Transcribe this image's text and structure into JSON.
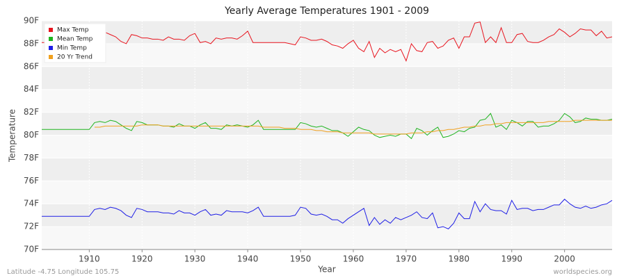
{
  "chart_data": {
    "type": "line",
    "title": "Yearly Average Temperatures 1901 - 2009",
    "xlabel": "Year",
    "ylabel": "Temperature",
    "caption": "Latitude -4.75 Longitude 105.75",
    "source": "worldspecies.org",
    "x": [
      1901,
      1902,
      1903,
      1904,
      1905,
      1906,
      1907,
      1908,
      1909,
      1910,
      1911,
      1912,
      1913,
      1914,
      1915,
      1916,
      1917,
      1918,
      1919,
      1920,
      1921,
      1922,
      1923,
      1924,
      1925,
      1926,
      1927,
      1928,
      1929,
      1930,
      1931,
      1932,
      1933,
      1934,
      1935,
      1936,
      1937,
      1938,
      1939,
      1940,
      1941,
      1942,
      1943,
      1944,
      1945,
      1946,
      1947,
      1948,
      1949,
      1950,
      1951,
      1952,
      1953,
      1954,
      1955,
      1956,
      1957,
      1958,
      1959,
      1960,
      1961,
      1962,
      1963,
      1964,
      1965,
      1966,
      1967,
      1968,
      1969,
      1970,
      1971,
      1972,
      1973,
      1974,
      1975,
      1976,
      1977,
      1978,
      1979,
      1980,
      1981,
      1982,
      1983,
      1984,
      1985,
      1986,
      1987,
      1988,
      1989,
      1990,
      1991,
      1992,
      1993,
      1994,
      1995,
      1996,
      1997,
      1998,
      1999,
      2000,
      2001,
      2002,
      2003,
      2004,
      2005,
      2006,
      2007,
      2008,
      2009
    ],
    "series": [
      {
        "name": "Max Temp",
        "color": "#e8141e",
        "values": [
          88.1,
          88.1,
          88.1,
          88.1,
          88.1,
          88.1,
          88.1,
          88.1,
          88.1,
          88.2,
          88.7,
          88.6,
          89.0,
          88.8,
          88.6,
          88.2,
          88.0,
          88.8,
          88.7,
          88.5,
          88.5,
          88.4,
          88.4,
          88.3,
          88.6,
          88.4,
          88.4,
          88.3,
          88.7,
          88.9,
          88.1,
          88.2,
          88.0,
          88.5,
          88.4,
          88.5,
          88.5,
          88.4,
          88.7,
          89.1,
          88.1,
          88.1,
          88.1,
          88.1,
          88.1,
          88.1,
          88.1,
          88.0,
          87.9,
          88.6,
          88.5,
          88.3,
          88.3,
          88.4,
          88.2,
          87.9,
          87.8,
          87.6,
          88.0,
          88.3,
          87.6,
          87.3,
          88.2,
          86.8,
          87.6,
          87.2,
          87.5,
          87.3,
          87.5,
          86.5,
          88.0,
          87.4,
          87.3,
          88.1,
          88.2,
          87.6,
          87.8,
          88.3,
          88.5,
          87.6,
          88.6,
          88.6,
          89.8,
          89.9,
          88.1,
          88.6,
          88.1,
          89.4,
          88.1,
          88.1,
          88.8,
          88.9,
          88.2,
          88.1,
          88.1,
          88.3,
          88.6,
          88.8,
          89.3,
          89.0,
          88.6,
          88.9,
          89.3,
          89.2,
          89.2,
          88.7,
          89.1,
          88.5,
          88.6
        ]
      },
      {
        "name": "Mean Temp",
        "color": "#1eb41e",
        "values": [
          80.5,
          80.5,
          80.5,
          80.5,
          80.5,
          80.5,
          80.5,
          80.5,
          80.5,
          80.5,
          81.1,
          81.2,
          81.1,
          81.3,
          81.2,
          80.9,
          80.6,
          80.4,
          81.2,
          81.1,
          80.9,
          80.9,
          80.9,
          80.8,
          80.8,
          80.7,
          81.0,
          80.8,
          80.8,
          80.6,
          80.9,
          81.1,
          80.6,
          80.6,
          80.5,
          80.9,
          80.8,
          80.9,
          80.8,
          80.7,
          80.9,
          81.3,
          80.5,
          80.5,
          80.5,
          80.5,
          80.5,
          80.5,
          80.5,
          81.1,
          81.0,
          80.8,
          80.7,
          80.8,
          80.6,
          80.4,
          80.4,
          80.2,
          79.9,
          80.3,
          80.7,
          80.5,
          80.4,
          80.0,
          79.8,
          79.9,
          80.0,
          79.9,
          80.1,
          80.1,
          79.7,
          80.6,
          80.4,
          80.0,
          80.4,
          80.7,
          79.8,
          79.9,
          80.1,
          80.4,
          80.3,
          80.6,
          80.7,
          81.3,
          81.4,
          81.9,
          80.7,
          80.9,
          80.5,
          81.3,
          81.1,
          80.8,
          81.2,
          81.2,
          80.7,
          80.8,
          80.8,
          81.0,
          81.3,
          81.9,
          81.6,
          81.1,
          81.2,
          81.5,
          81.4,
          81.4,
          81.3,
          81.3,
          81.4
        ]
      },
      {
        "name": "Min Temp",
        "color": "#1e1ee6",
        "values": [
          72.9,
          72.9,
          72.9,
          72.9,
          72.9,
          72.9,
          72.9,
          72.9,
          72.9,
          72.9,
          73.5,
          73.6,
          73.5,
          73.7,
          73.6,
          73.4,
          73.0,
          72.8,
          73.6,
          73.5,
          73.3,
          73.3,
          73.3,
          73.2,
          73.2,
          73.1,
          73.4,
          73.2,
          73.2,
          73.0,
          73.3,
          73.5,
          73.0,
          73.1,
          73.0,
          73.4,
          73.3,
          73.3,
          73.3,
          73.2,
          73.4,
          73.7,
          72.9,
          72.9,
          72.9,
          72.9,
          72.9,
          72.9,
          73.0,
          73.7,
          73.6,
          73.1,
          73.0,
          73.1,
          72.9,
          72.6,
          72.6,
          72.3,
          72.7,
          73.0,
          73.3,
          73.6,
          72.1,
          72.8,
          72.2,
          72.6,
          72.3,
          72.8,
          72.6,
          72.8,
          73.0,
          73.3,
          72.8,
          72.7,
          73.2,
          71.9,
          72.0,
          71.8,
          72.3,
          73.2,
          72.7,
          72.7,
          74.2,
          73.3,
          74.0,
          73.5,
          73.4,
          73.4,
          73.1,
          74.3,
          73.5,
          73.6,
          73.6,
          73.4,
          73.5,
          73.5,
          73.7,
          73.9,
          73.9,
          74.4,
          74.0,
          73.7,
          73.6,
          73.8,
          73.6,
          73.7,
          73.9,
          74.0,
          74.3
        ]
      },
      {
        "name": "20 Yr Trend",
        "color": "#f0a01e",
        "values": [
          null,
          null,
          null,
          null,
          null,
          null,
          null,
          null,
          null,
          null,
          80.7,
          80.7,
          80.8,
          80.8,
          80.8,
          80.8,
          80.8,
          80.8,
          80.8,
          80.9,
          80.9,
          80.9,
          80.9,
          80.8,
          80.8,
          80.8,
          80.8,
          80.8,
          80.8,
          80.8,
          80.8,
          80.8,
          80.8,
          80.8,
          80.8,
          80.8,
          80.8,
          80.8,
          80.8,
          80.8,
          80.8,
          80.8,
          80.7,
          80.7,
          80.7,
          80.7,
          80.6,
          80.6,
          80.6,
          80.5,
          80.5,
          80.5,
          80.4,
          80.4,
          80.3,
          80.3,
          80.3,
          80.2,
          80.2,
          80.2,
          80.2,
          80.2,
          80.2,
          80.1,
          80.1,
          80.1,
          80.1,
          80.1,
          80.1,
          80.1,
          80.2,
          80.2,
          80.2,
          80.3,
          80.3,
          80.4,
          80.4,
          80.5,
          80.5,
          80.6,
          80.7,
          80.7,
          80.8,
          80.8,
          80.9,
          80.9,
          81.0,
          81.0,
          81.1,
          81.1,
          81.1,
          81.1,
          81.1,
          81.1,
          81.1,
          81.1,
          81.2,
          81.2,
          81.2,
          81.2,
          81.2,
          81.3,
          81.3,
          81.3,
          81.3,
          81.3,
          81.3,
          81.3,
          81.3
        ]
      }
    ],
    "xlim": [
      1901,
      2009
    ],
    "xticks": [
      1910,
      1920,
      1930,
      1940,
      1950,
      1960,
      1970,
      1980,
      1990,
      2000
    ],
    "ylim": [
      70,
      90
    ],
    "yticks": [
      {
        "value": 70,
        "label": "70F"
      },
      {
        "value": 72,
        "label": "72F"
      },
      {
        "value": 74,
        "label": "74F"
      },
      {
        "value": 76,
        "label": "76F"
      },
      {
        "value": 78,
        "label": "78F"
      },
      {
        "value": 80,
        "label": "80F"
      },
      {
        "value": 82,
        "label": "82F"
      },
      {
        "value": 84,
        "label": "84F"
      },
      {
        "value": 86,
        "label": "86F"
      },
      {
        "value": 88,
        "label": "88F"
      },
      {
        "value": 90,
        "label": "90F"
      }
    ],
    "grid": true,
    "legend": "top-left"
  }
}
